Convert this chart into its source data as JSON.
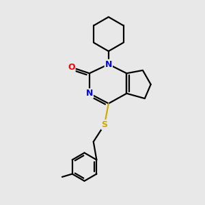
{
  "background_color": "#e8e8e8",
  "bond_color": "#000000",
  "atom_colors": {
    "N": "#0000ff",
    "O": "#ff0000",
    "S": "#ccaa00",
    "C": "#000000"
  },
  "line_width": 1.6,
  "figsize": [
    3.0,
    3.0
  ],
  "dpi": 100,
  "xlim": [
    0,
    10
  ],
  "ylim": [
    0,
    10
  ]
}
